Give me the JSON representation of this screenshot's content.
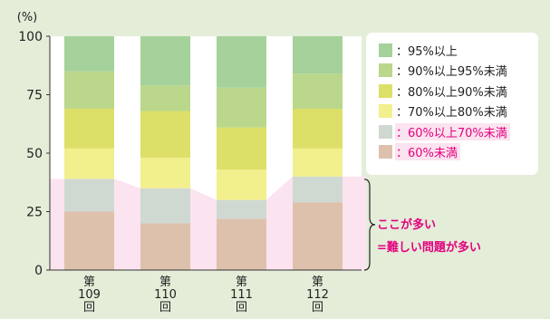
{
  "chart_data": {
    "type": "bar",
    "stacked": true,
    "percent_stacked": true,
    "ylabel": "(%)",
    "ylim": [
      0,
      100
    ],
    "yticks": [
      0,
      25,
      50,
      75,
      100
    ],
    "categories": [
      "第\n109\n回",
      "第\n110\n回",
      "第\n111\n回",
      "第\n112\n回"
    ],
    "series": [
      {
        "name": "60%未満",
        "color": "#ddc1ad",
        "values": [
          25,
          20,
          22,
          29
        ]
      },
      {
        "name": "60%以上70%未満",
        "color": "#cfd9d2",
        "values": [
          14,
          15,
          8,
          11
        ]
      },
      {
        "name": "70%以上80%未満",
        "color": "#f2ef8d",
        "values": [
          13,
          13,
          13,
          12
        ]
      },
      {
        "name": "80%以上90%未満",
        "color": "#dce068",
        "values": [
          17,
          20,
          18,
          17
        ]
      },
      {
        "name": "90%以上95%未満",
        "color": "#bad78b",
        "values": [
          16,
          11,
          17,
          15
        ]
      },
      {
        "name": "95%以上",
        "color": "#a5d19a",
        "values": [
          15,
          21,
          22,
          16
        ]
      }
    ],
    "highlight": {
      "series": [
        "60%未満",
        "60%以上70%未満"
      ],
      "color": "#fbe3ef"
    },
    "legend": [
      "95%以上",
      "90%以上95%未満",
      "80%以上90%未満",
      "70%以上80%未満",
      "60%以上70%未満",
      "60%未満"
    ],
    "legend_prefix": "：",
    "legend_position": "right",
    "annotation": [
      "ここが多い",
      "=難しい問題が多い"
    ]
  }
}
